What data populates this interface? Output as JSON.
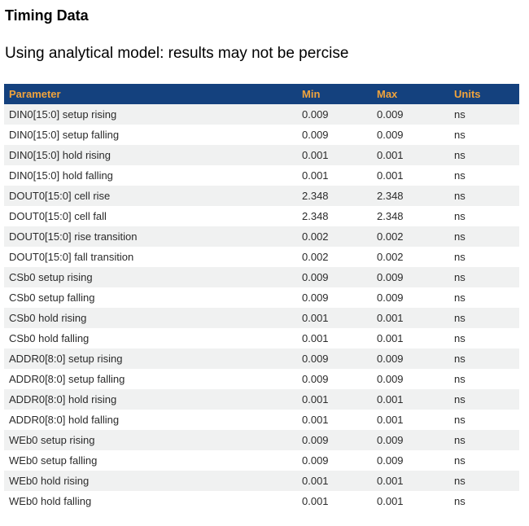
{
  "page": {
    "title": "Timing Data",
    "subtitle": "Using analytical model: results may not be percise"
  },
  "table": {
    "columns": [
      "Parameter",
      "Min",
      "Max",
      "Units"
    ],
    "rows": [
      {
        "parameter": "DIN0[15:0] setup rising",
        "min": "0.009",
        "max": "0.009",
        "units": "ns"
      },
      {
        "parameter": "DIN0[15:0] setup falling",
        "min": "0.009",
        "max": "0.009",
        "units": "ns"
      },
      {
        "parameter": "DIN0[15:0] hold rising",
        "min": "0.001",
        "max": "0.001",
        "units": "ns"
      },
      {
        "parameter": "DIN0[15:0] hold falling",
        "min": "0.001",
        "max": "0.001",
        "units": "ns"
      },
      {
        "parameter": "DOUT0[15:0] cell rise",
        "min": "2.348",
        "max": "2.348",
        "units": "ns"
      },
      {
        "parameter": "DOUT0[15:0] cell fall",
        "min": "2.348",
        "max": "2.348",
        "units": "ns"
      },
      {
        "parameter": "DOUT0[15:0] rise transition",
        "min": "0.002",
        "max": "0.002",
        "units": "ns"
      },
      {
        "parameter": "DOUT0[15:0] fall transition",
        "min": "0.002",
        "max": "0.002",
        "units": "ns"
      },
      {
        "parameter": "CSb0 setup rising",
        "min": "0.009",
        "max": "0.009",
        "units": "ns"
      },
      {
        "parameter": "CSb0 setup falling",
        "min": "0.009",
        "max": "0.009",
        "units": "ns"
      },
      {
        "parameter": "CSb0 hold rising",
        "min": "0.001",
        "max": "0.001",
        "units": "ns"
      },
      {
        "parameter": "CSb0 hold falling",
        "min": "0.001",
        "max": "0.001",
        "units": "ns"
      },
      {
        "parameter": "ADDR0[8:0] setup rising",
        "min": "0.009",
        "max": "0.009",
        "units": "ns"
      },
      {
        "parameter": "ADDR0[8:0] setup falling",
        "min": "0.009",
        "max": "0.009",
        "units": "ns"
      },
      {
        "parameter": "ADDR0[8:0] hold rising",
        "min": "0.001",
        "max": "0.001",
        "units": "ns"
      },
      {
        "parameter": "ADDR0[8:0] hold falling",
        "min": "0.001",
        "max": "0.001",
        "units": "ns"
      },
      {
        "parameter": "WEb0 setup rising",
        "min": "0.009",
        "max": "0.009",
        "units": "ns"
      },
      {
        "parameter": "WEb0 setup falling",
        "min": "0.009",
        "max": "0.009",
        "units": "ns"
      },
      {
        "parameter": "WEb0 hold rising",
        "min": "0.001",
        "max": "0.001",
        "units": "ns"
      },
      {
        "parameter": "WEb0 hold falling",
        "min": "0.001",
        "max": "0.001",
        "units": "ns"
      }
    ]
  },
  "colors": {
    "header_bg": "#14417e",
    "header_text": "#f0a33c",
    "row_alt_bg": "#f0f1f1",
    "row_bg": "#ffffff",
    "body_text": "#2b2b2b"
  }
}
